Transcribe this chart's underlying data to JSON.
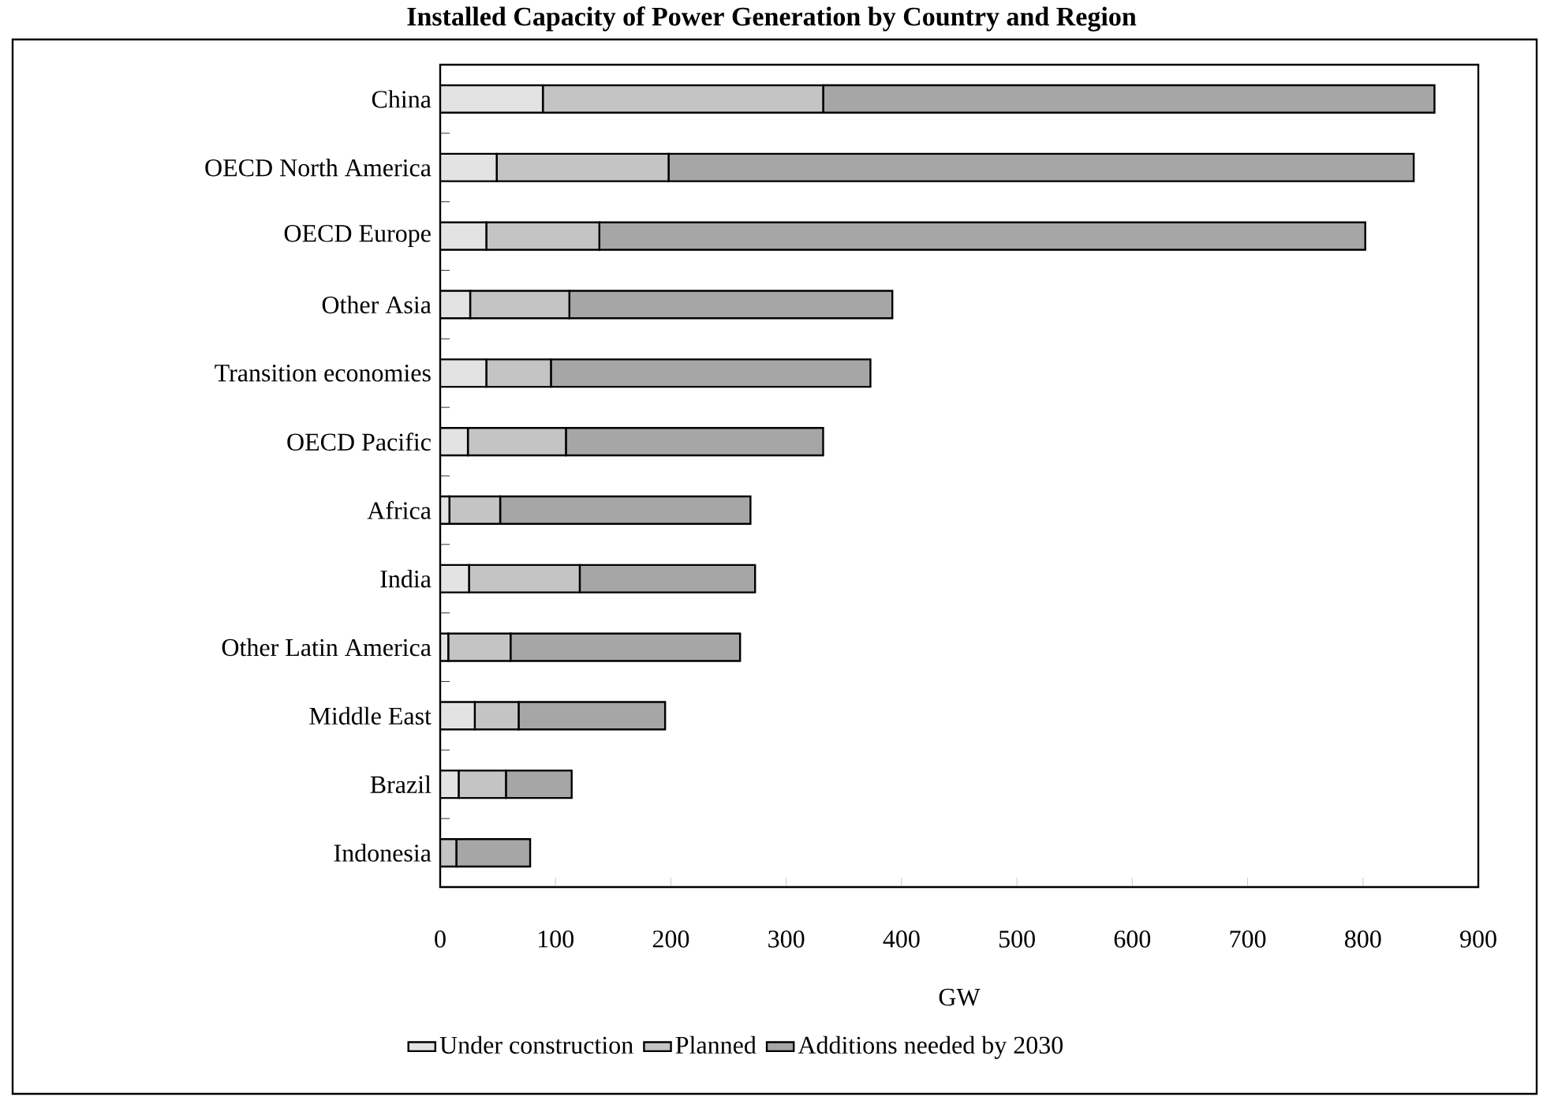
{
  "chart_data": {
    "type": "bar",
    "orientation": "horizontal",
    "stacked": true,
    "title": "Installed Capacity of Power Generation by Country and Region",
    "xlabel": "GW",
    "categories": [
      "China",
      "OECD North America",
      "OECD Europe",
      "Other Asia",
      "Transition economies",
      "OECD Pacific",
      "Africa",
      "India",
      "Other Latin America",
      "Middle East",
      "Brazil",
      "Indonesia"
    ],
    "series": [
      {
        "name": "Under construction",
        "color": "#e3e3e3",
        "values": [
          89,
          49,
          40,
          26,
          40,
          24,
          8,
          25,
          7,
          30,
          16,
          0
        ]
      },
      {
        "name": "Planned",
        "color": "#c4c4c4",
        "values": [
          243,
          149,
          98,
          86,
          56,
          85,
          44,
          96,
          54,
          38,
          41,
          14
        ]
      },
      {
        "name": "Additions needed by 2030",
        "color": "#a6a6a6",
        "values": [
          530,
          646,
          664,
          280,
          277,
          223,
          217,
          152,
          199,
          127,
          57,
          64
        ]
      }
    ],
    "xlim": [
      0,
      900
    ],
    "xticks": [
      0,
      100,
      200,
      300,
      400,
      500,
      600,
      700,
      800,
      900
    ],
    "grid": false,
    "legend": "bottom"
  }
}
